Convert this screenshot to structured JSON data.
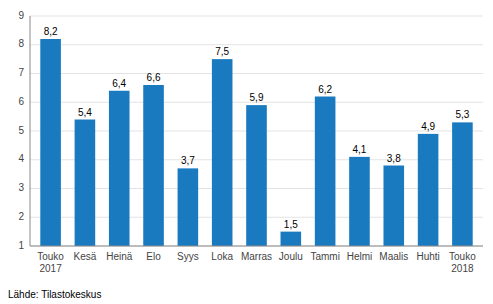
{
  "chart_data": {
    "type": "bar",
    "categories": [
      "Touko\n2017",
      "Kesä",
      "Heinä",
      "Elo",
      "Syys",
      "Loka",
      "Marras",
      "Joulu",
      "Tammi",
      "Helmi",
      "Maalis",
      "Huhti",
      "Touko\n2018"
    ],
    "values": [
      8.2,
      5.4,
      6.4,
      6.6,
      3.7,
      7.5,
      5.9,
      1.5,
      6.2,
      4.1,
      3.8,
      4.9,
      5.3
    ],
    "value_labels": [
      "8,2",
      "5,4",
      "6,4",
      "6,6",
      "3,7",
      "7,5",
      "5,9",
      "1,5",
      "6,2",
      "4,1",
      "3,8",
      "4,9",
      "5,3"
    ],
    "data_labels": true,
    "color": "#1a7abf",
    "ylim": [
      1,
      9
    ],
    "yticks": [
      1,
      2,
      3,
      4,
      5,
      6,
      7,
      8,
      9
    ],
    "grid": true,
    "annotations": [
      "Lähde: Tilastokeskus"
    ]
  }
}
